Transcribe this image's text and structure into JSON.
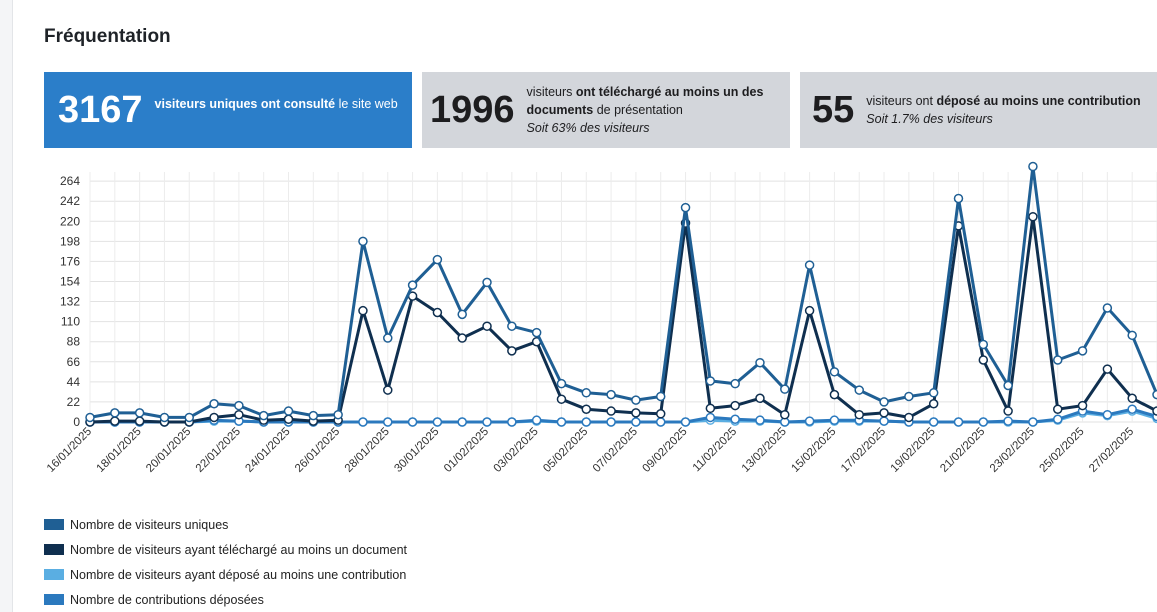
{
  "page": {
    "title": "Fréquentation"
  },
  "cards": [
    {
      "number": "3167",
      "bold1": "visiteurs uniques ont consulté",
      "text1": " le site web"
    },
    {
      "number": "1996",
      "text1": "visiteurs ",
      "bold1": "ont téléchargé au moins un des documents",
      "text2": " de présentation",
      "italic": "Soit 63% des visiteurs"
    },
    {
      "number": "55",
      "text1": "visiteurs ont ",
      "bold1": "déposé au moins une contribution",
      "italic": "Soit 1.7% des visiteurs"
    }
  ],
  "colors": {
    "card_blue": "#2b7ec9",
    "card_grey": "#d3d6db",
    "series1": "#1f5f94",
    "series2": "#0f2f4f",
    "series3": "#5aaee2",
    "series4": "#2b79be"
  },
  "chart_data": {
    "type": "line",
    "x": [
      "16/01/2025",
      "17/01/2025",
      "18/01/2025",
      "19/01/2025",
      "20/01/2025",
      "21/01/2025",
      "22/01/2025",
      "23/01/2025",
      "24/01/2025",
      "25/01/2025",
      "26/01/2025",
      "27/01/2025",
      "28/01/2025",
      "29/01/2025",
      "30/01/2025",
      "31/01/2025",
      "01/02/2025",
      "02/02/2025",
      "03/02/2025",
      "04/02/2025",
      "05/02/2025",
      "06/02/2025",
      "07/02/2025",
      "08/02/2025",
      "09/02/2025",
      "10/02/2025",
      "11/02/2025",
      "12/02/2025",
      "13/02/2025",
      "14/02/2025",
      "15/02/2025",
      "16/02/2025",
      "17/02/2025",
      "18/02/2025",
      "19/02/2025",
      "20/02/2025",
      "21/02/2025",
      "22/02/2025",
      "23/02/2025",
      "24/02/2025",
      "25/02/2025",
      "26/02/2025",
      "27/02/2025",
      "28/02/2025"
    ],
    "x_tick_labels": [
      "16/01/2025",
      "18/01/2025",
      "20/01/2025",
      "22/01/2025",
      "24/01/2025",
      "26/01/2025",
      "28/01/2025",
      "30/01/2025",
      "01/02/2025",
      "03/02/2025",
      "05/02/2025",
      "07/02/2025",
      "09/02/2025",
      "11/02/2025",
      "13/02/2025",
      "15/02/2025",
      "17/02/2025",
      "19/02/2025",
      "21/02/2025",
      "23/02/2025",
      "25/02/2025",
      "27/02/2025"
    ],
    "yticks": [
      0,
      22,
      44,
      66,
      88,
      110,
      132,
      154,
      176,
      198,
      220,
      242,
      264
    ],
    "ylim": [
      0,
      274
    ],
    "grid": true,
    "legend_position": "bottom",
    "series": [
      {
        "name": "Nombre de visiteurs uniques",
        "color": "#1f5f94",
        "values": [
          5,
          10,
          10,
          5,
          5,
          20,
          18,
          7,
          12,
          7,
          8,
          198,
          92,
          150,
          178,
          118,
          153,
          105,
          98,
          42,
          32,
          30,
          24,
          28,
          235,
          45,
          42,
          65,
          36,
          172,
          55,
          35,
          22,
          28,
          32,
          245,
          85,
          40,
          280,
          68,
          78,
          125,
          95,
          30
        ]
      },
      {
        "name": "Nombre de visiteurs ayant téléchargé au moins un document",
        "color": "#0f2f4f",
        "values": [
          0,
          1,
          1,
          0,
          0,
          5,
          8,
          2,
          3,
          1,
          2,
          122,
          35,
          138,
          120,
          92,
          105,
          78,
          88,
          25,
          14,
          12,
          10,
          9,
          218,
          15,
          18,
          26,
          8,
          122,
          30,
          8,
          10,
          5,
          20,
          215,
          68,
          12,
          225,
          14,
          18,
          58,
          26,
          12
        ]
      },
      {
        "name": "Nombre de visiteurs ayant déposé au moins une contribution",
        "color": "#5aaee2",
        "values": [
          0,
          0,
          0,
          0,
          0,
          1,
          1,
          0,
          0,
          0,
          0,
          0,
          0,
          0,
          0,
          0,
          0,
          0,
          1,
          0,
          0,
          0,
          0,
          0,
          0,
          2,
          1,
          1,
          0,
          0,
          1,
          1,
          1,
          0,
          0,
          0,
          0,
          0,
          0,
          2,
          10,
          7,
          12,
          4
        ]
      },
      {
        "name": "Nombre de contribution déposées",
        "color": "#2b79be",
        "values": [
          0,
          0,
          0,
          0,
          0,
          2,
          1,
          0,
          0,
          0,
          0,
          0,
          0,
          0,
          0,
          0,
          0,
          0,
          2,
          0,
          0,
          0,
          0,
          0,
          0,
          5,
          3,
          2,
          0,
          1,
          2,
          2,
          1,
          0,
          0,
          0,
          0,
          1,
          0,
          3,
          12,
          8,
          14,
          6
        ]
      }
    ],
    "legend": [
      "Nombre de visiteurs uniques",
      "Nombre de visiteurs ayant téléchargé au moins un document",
      "Nombre de visiteurs ayant déposé au moins une contribution",
      "Nombre de contributions déposées"
    ]
  }
}
